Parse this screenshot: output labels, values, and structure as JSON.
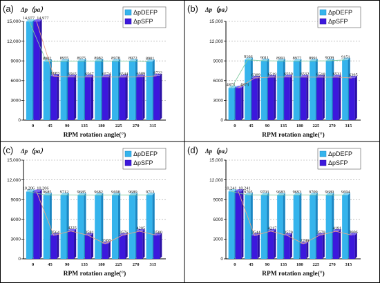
{
  "colors": {
    "pDEFP_face": "#35b4ec",
    "pDEFP_side": "#1a86c2",
    "pDEFP_top": "#8fd8f6",
    "pSFP_face": "#3c18dc",
    "pSFP_side": "#2a0fa6",
    "pSFP_top": "#7d66f0",
    "line_pDEFP": "#7fc9a0",
    "line_pSFP": "#e8a58a",
    "grid": "#9a9a9a",
    "axis": "#000000"
  },
  "chart_data": [
    {
      "type": "bar",
      "panel": "(a)",
      "ylabel": "Δp（pa）",
      "xlabel": "RPM rotation angle(°)",
      "categories": [
        "0",
        "45",
        "90",
        "135",
        "180",
        "225",
        "270",
        "315"
      ],
      "ylim": [
        0,
        15000
      ],
      "yticks": [
        "0",
        "3000",
        "6000",
        "9000",
        "12,000",
        "15,000"
      ],
      "legend_position": "top-right",
      "series": [
        {
          "name": "ΔpDEFP",
          "values": [
            14977,
            8902,
            8955,
            8975,
            8982,
            8978,
            8972,
            8901
          ],
          "labels": [
            "14,977",
            "8902",
            "8955",
            "8975",
            "8982",
            "8978",
            "8972",
            "8901"
          ]
        },
        {
          "name": "ΔpSFP",
          "values": [
            14977,
            6683,
            6565,
            6567,
            6574,
            6544,
            6589,
            6722
          ],
          "labels": [
            "14,977",
            "6683",
            "6565",
            "6567",
            "6574",
            "6544",
            "6589",
            "6722"
          ]
        }
      ]
    },
    {
      "type": "bar",
      "panel": "(b)",
      "ylabel": "Δp（pa）",
      "xlabel": "RPM rotation angle(°)",
      "categories": [
        "0",
        "45",
        "90",
        "135",
        "180",
        "225",
        "270",
        "315"
      ],
      "ylim": [
        0,
        15000
      ],
      "yticks": [
        "0",
        "3000",
        "6000",
        "9000",
        "12,000",
        "15,000"
      ],
      "legend_position": "top-right",
      "series": [
        {
          "name": "ΔpDEFP",
          "values": [
            4873,
            9166,
            9011,
            8991,
            8977,
            8991,
            9009,
            9151
          ],
          "labels": [
            "4873",
            "9166",
            "9011",
            "8991",
            "8977",
            "8991",
            "9009",
            "9151"
          ]
        },
        {
          "name": "ΔpSFP",
          "values": [
            4873,
            6389,
            6519,
            6550,
            6532,
            6518,
            6531,
            6395
          ],
          "labels": [
            "4873",
            "6389",
            "6519",
            "6550",
            "6532",
            "6518",
            "6531",
            "6395"
          ]
        }
      ]
    },
    {
      "type": "bar",
      "panel": "(c)",
      "ylabel": "Δp（pa）",
      "xlabel": "RPM rotation angle(°)",
      "categories": [
        "0",
        "45",
        "90",
        "135",
        "180",
        "225",
        "270",
        "315"
      ],
      "ylim": [
        0,
        15000
      ],
      "yticks": [
        "0",
        "3000",
        "6000",
        "9000",
        "12,000",
        "15,000"
      ],
      "legend_position": "top-right",
      "series": [
        {
          "name": "ΔpDEFP",
          "values": [
            10206,
            9685,
            9712,
            9685,
            9682,
            9698,
            9689,
            9713
          ],
          "labels": [
            "10,206",
            "9685",
            "9712",
            "9685",
            "9682",
            "9698",
            "9689",
            "9713"
          ]
        },
        {
          "name": "ΔpSFP",
          "values": [
            10206,
            3564,
            4225,
            3581,
            2300,
            3576,
            4205,
            3580
          ],
          "labels": [
            "10,206",
            "3564",
            "4225",
            "3581",
            "2300",
            "3576",
            "4205",
            "3580"
          ]
        }
      ]
    },
    {
      "type": "bar",
      "panel": "(d)",
      "ylabel": "Δp（pa）",
      "xlabel": "RPM rotation angle(°)",
      "categories": [
        "0",
        "45",
        "90",
        "135",
        "180",
        "225",
        "270",
        "315"
      ],
      "ylim": [
        0,
        15000
      ],
      "yticks": [
        "0",
        "3000",
        "6000",
        "9000",
        "12,000",
        "15,000"
      ],
      "legend_position": "top-right",
      "series": [
        {
          "name": "ΔpDEFP",
          "values": [
            10241,
            9705,
            9703,
            9683,
            9693,
            9709,
            9689,
            9694
          ],
          "labels": [
            "10,241",
            "9705",
            "9703",
            "9683",
            "9693",
            "9709",
            "9689",
            "9694"
          ]
        },
        {
          "name": "ΔpSFP",
          "values": [
            10241,
            3544,
            4217,
            3579,
            2299,
            3579,
            4191,
            3606
          ],
          "labels": [
            "10,241",
            "3544",
            "4217",
            "3579",
            "2299",
            "3579",
            "4191",
            "3606"
          ]
        }
      ]
    }
  ]
}
